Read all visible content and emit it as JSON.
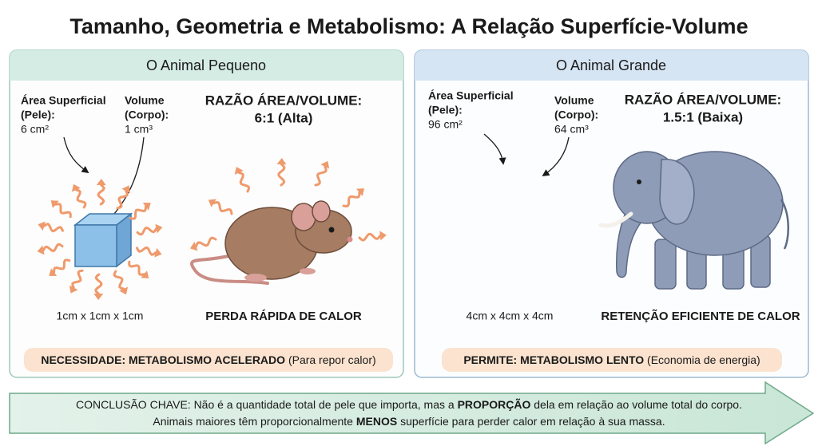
{
  "title": "Tamanho, Geometria e Metabolismo: A Relação Superfície-Volume",
  "panels": [
    {
      "heading": "O Animal Pequeno",
      "area_label": [
        "Área Superficial",
        "(Pele):"
      ],
      "area_value": "6 cm²",
      "volume_label": [
        "Volume",
        "(Corpo):"
      ],
      "volume_value": "1 cm³",
      "ratio_title": "RAZÃO ÁREA/VOLUME:",
      "ratio_value": "6:1 (Alta)",
      "dimensions": "1cm x 1cm x 1cm",
      "effect": "PERDA RÁPIDA DE CALOR",
      "footer_bold": "NECESSIDADE: METABOLISMO ACELERADO",
      "footer_note": "(Para repor calor)"
    },
    {
      "heading": "O Animal Grande",
      "area_label": [
        "Área Superficial",
        "(Pele):"
      ],
      "area_value": "96 cm²",
      "volume_label": [
        "Volume",
        "(Corpo):"
      ],
      "volume_value": "64 cm³",
      "ratio_title": "RAZÃO ÁREA/VOLUME:",
      "ratio_value": "1.5:1 (Baixa)",
      "dimensions": "4cm x 4cm x 4cm",
      "effect": "RETENÇÃO EFICIENTE DE CALOR",
      "footer_bold": "PERMITE:  METABOLISMO LENTO",
      "footer_note": "(Economia de energia)"
    }
  ],
  "conclusion": {
    "lines": [
      [
        "CONCLUSÃO CHAVE: Não é a quantidade total de pele que importa, mas a ",
        "PROPORÇÃO",
        " dela em relação ao volume total do corpo."
      ],
      [
        "Animais maiores têm proporcionalmente ",
        "MENOS",
        " superfície para perder calor em relação à sua massa."
      ]
    ]
  }
}
